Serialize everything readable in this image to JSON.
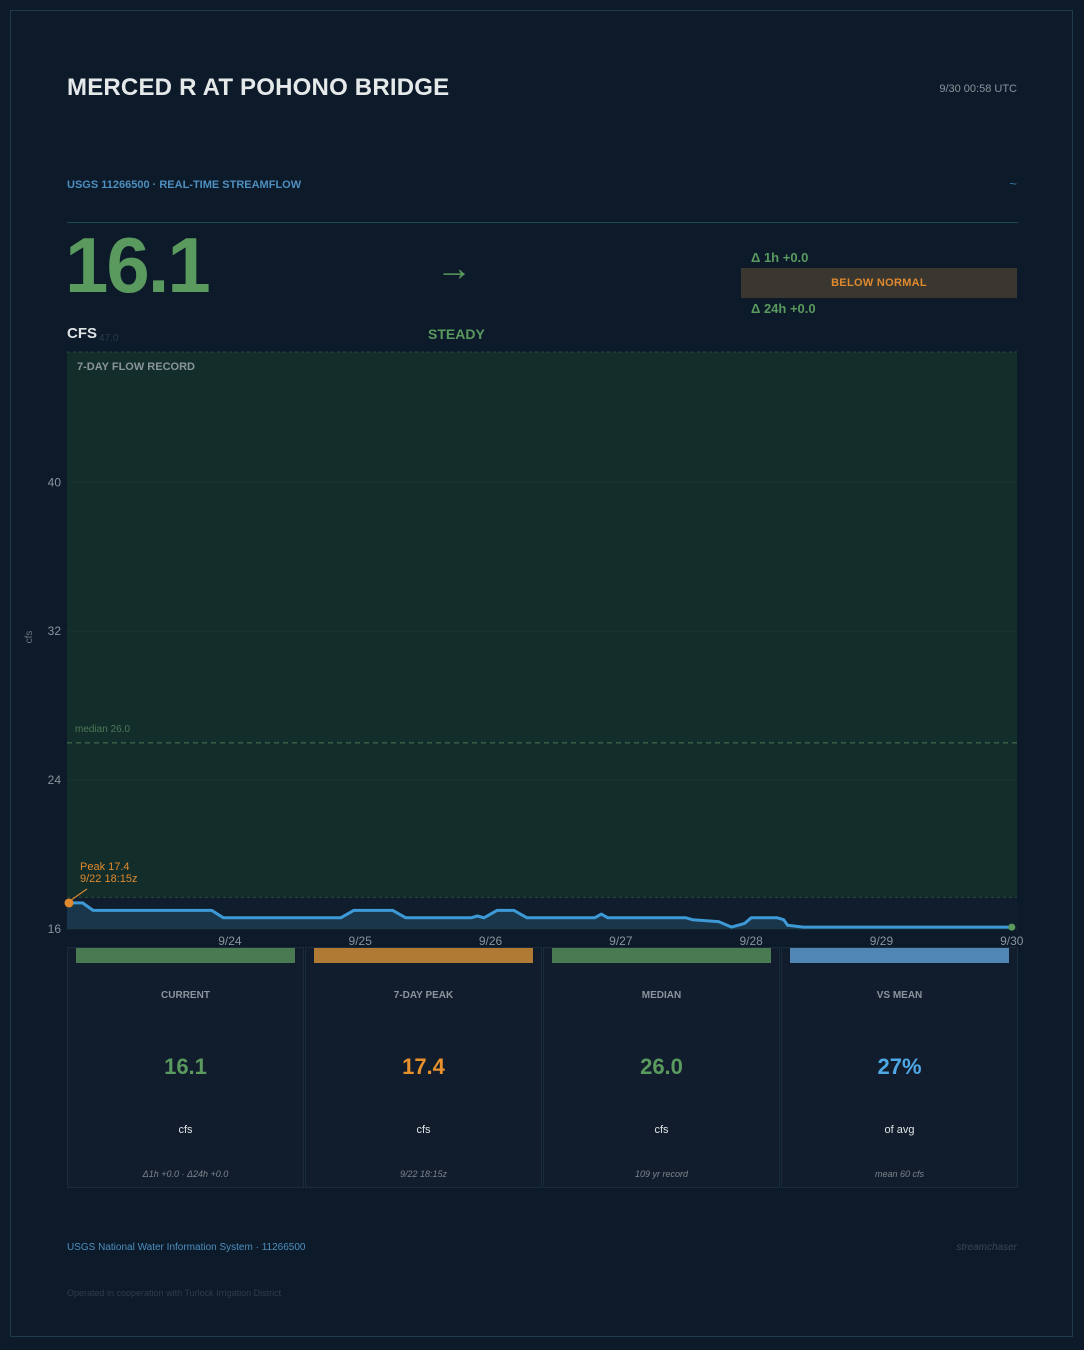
{
  "header": {
    "title": "MERCED R AT POHONO BRIDGE",
    "timestamp": "9/30  00:58 UTC",
    "source": "USGS 11266500  ·  REAL-TIME STREAMFLOW",
    "wave_glyph": "~"
  },
  "current": {
    "value": "16.1",
    "unit": "CFS",
    "ghost_value": "47.0",
    "trend_arrow": "→",
    "trend": "STEADY",
    "delta_1h": "Δ 1h  +0.0",
    "delta_24h": "Δ 24h  +0.0",
    "status": "BELOW NORMAL"
  },
  "chart_data": {
    "type": "area",
    "title": "7-DAY FLOW RECORD",
    "ylabel": "cfs",
    "ylim": [
      16,
      47
    ],
    "yticks": [
      16,
      24,
      32,
      40
    ],
    "xticks": [
      "9/24",
      "9/25",
      "9/26",
      "9/27",
      "9/28",
      "9/29",
      "9/30"
    ],
    "xlim_days": [
      22.75,
      30.04
    ],
    "series": [
      {
        "points": [
          [
            22.75,
            17.4
          ],
          [
            22.87,
            17.4
          ],
          [
            22.95,
            17.0
          ],
          [
            23.3,
            17.0
          ],
          [
            23.6,
            17.0
          ],
          [
            23.86,
            17.0
          ],
          [
            23.95,
            16.6
          ],
          [
            24.5,
            16.6
          ],
          [
            24.85,
            16.6
          ],
          [
            24.95,
            17.0
          ],
          [
            25.25,
            17.0
          ],
          [
            25.35,
            16.6
          ],
          [
            25.85,
            16.6
          ],
          [
            25.9,
            16.7
          ],
          [
            25.95,
            16.6
          ],
          [
            26.05,
            17.0
          ],
          [
            26.18,
            17.0
          ],
          [
            26.28,
            16.6
          ],
          [
            26.8,
            16.6
          ],
          [
            26.85,
            16.8
          ],
          [
            26.9,
            16.6
          ],
          [
            27.5,
            16.6
          ],
          [
            27.55,
            16.5
          ],
          [
            27.75,
            16.4
          ],
          [
            27.85,
            16.1
          ],
          [
            27.95,
            16.3
          ],
          [
            28.0,
            16.6
          ],
          [
            28.15,
            16.6
          ],
          [
            28.2,
            16.6
          ],
          [
            28.25,
            16.5
          ],
          [
            28.28,
            16.2
          ],
          [
            28.4,
            16.1
          ],
          [
            29.0,
            16.1
          ],
          [
            29.5,
            16.1
          ],
          [
            30.0,
            16.1
          ]
        ]
      }
    ],
    "median": 26.0,
    "median_label": "median  26.0",
    "normal_band": [
      17.7,
      47
    ],
    "peak": {
      "day": 22.75,
      "value": 17.4,
      "label": "Peak  17.4",
      "time": "9/22  18:15z"
    },
    "current_point": {
      "day": 30.0,
      "value": 16.1
    }
  },
  "colors": {
    "good": "#5a9a5e",
    "warn": "#e08a2e",
    "info": "#4fa8e6",
    "line": "#3d9ad6"
  },
  "cards": [
    {
      "label": "CURRENT",
      "value": "16.1",
      "unit": "cfs",
      "note": "Δ1h +0.0  ·  Δ24h +0.0",
      "color": "#5a9a5e",
      "strip": "#4a7a52"
    },
    {
      "label": "7-DAY PEAK",
      "value": "17.4",
      "unit": "cfs",
      "note": "9/22 18:15z",
      "color": "#e8902c",
      "strip": "#b07a34"
    },
    {
      "label": "MEDIAN",
      "value": "26.0",
      "unit": "cfs",
      "note": "109 yr record",
      "color": "#5a9a5e",
      "strip": "#4a7a52"
    },
    {
      "label": "VS MEAN",
      "value": "27%",
      "unit": "of avg",
      "note": "mean 60 cfs",
      "color": "#4fa8e6",
      "strip": "#4f86b4"
    }
  ],
  "footer": {
    "system": "USGS National Water Information System  ·  11266500",
    "brand": "streamchaser",
    "cooperation": "Operated in cooperation with Turlock Irrigation District"
  }
}
